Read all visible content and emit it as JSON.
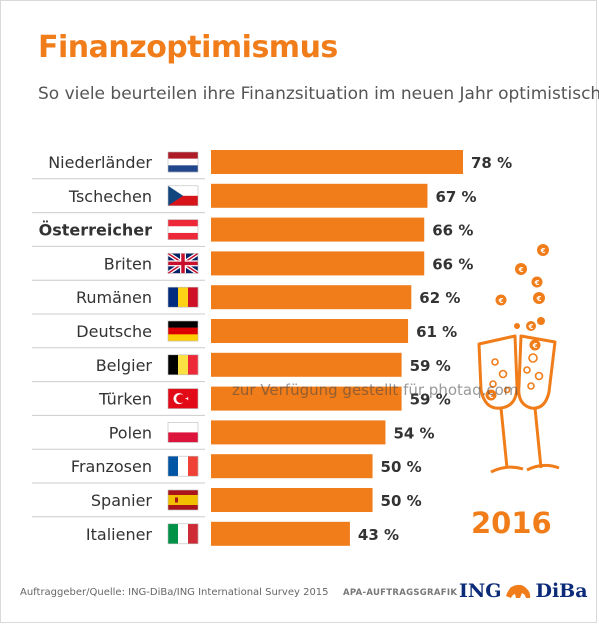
{
  "header": {
    "title": "Finanzoptimismus",
    "subtitle": "So viele beurteilen ihre Finanzsituation im neuen Jahr optimistisch"
  },
  "chart_data": {
    "type": "bar",
    "orientation": "horizontal",
    "categories": [
      "Niederländer",
      "Tschechen",
      "Österreicher",
      "Briten",
      "Rumänen",
      "Deutsche",
      "Belgier",
      "Türken",
      "Polen",
      "Franzosen",
      "Spanier",
      "Italiener"
    ],
    "values": [
      78,
      67,
      66,
      66,
      62,
      61,
      59,
      59,
      54,
      50,
      50,
      43
    ],
    "value_labels": [
      "78 %",
      "67 %",
      "66 %",
      "66 %",
      "62 %",
      "61 %",
      "59 %",
      "59 %",
      "54 %",
      "50 %",
      "50 %",
      "43 %"
    ],
    "highlighted_category": "Österreicher",
    "flags": [
      "netherlands-flag-icon",
      "czech-flag-icon",
      "austria-flag-icon",
      "uk-flag-icon",
      "romania-flag-icon",
      "germany-flag-icon",
      "belgium-flag-icon",
      "turkey-flag-icon",
      "poland-flag-icon",
      "france-flag-icon",
      "spain-flag-icon",
      "italy-flag-icon"
    ],
    "xlim": [
      0,
      100
    ],
    "bar_color": "#f07d1a"
  },
  "decoration": {
    "year": "2016",
    "illustration": "champagne-glasses-with-euro-bubbles-icon"
  },
  "footer": {
    "source": "Auftraggeber/Quelle: ING-DiBa/ING International Survey 2015",
    "credit": "APA-AUFTRAGSGRAFIK",
    "logo_left": "ING",
    "logo_right": "DiBa"
  },
  "watermark": "zur Verfügung gestellt für photaq.com",
  "colors": {
    "accent": "#f07d1a",
    "text": "#333333",
    "logo": "#0b2a78"
  }
}
